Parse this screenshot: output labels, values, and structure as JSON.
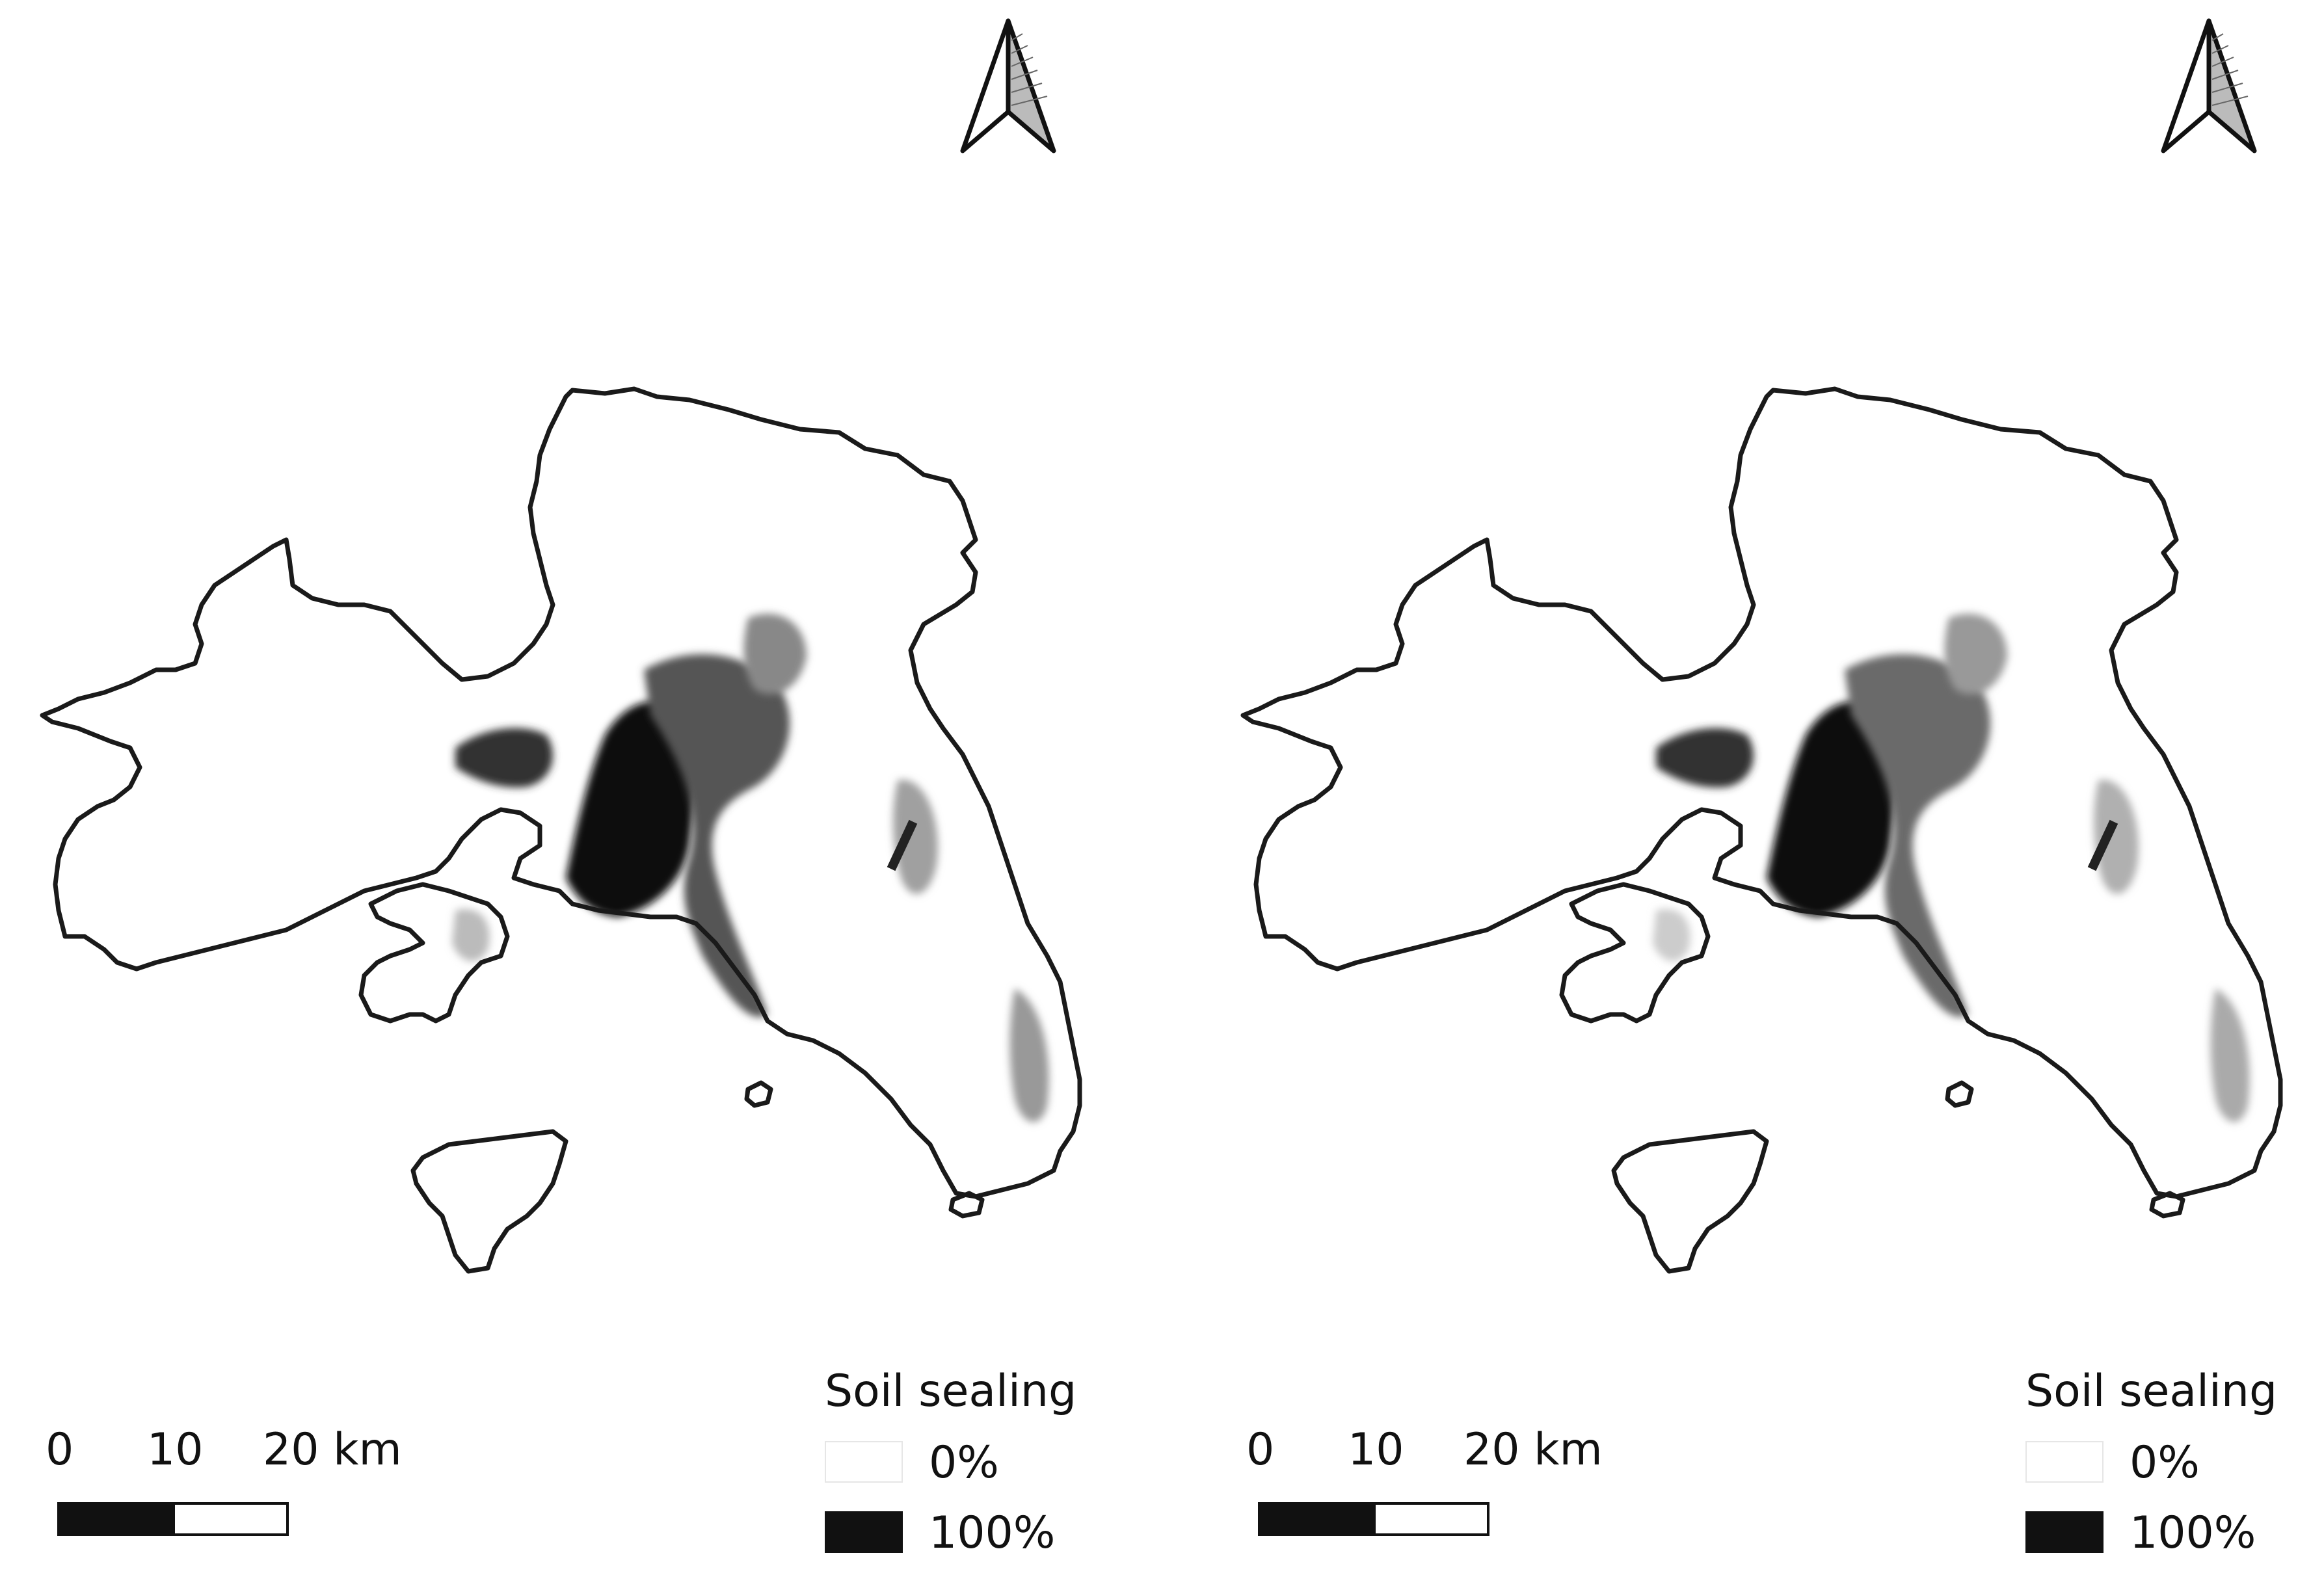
{
  "maps": [
    {
      "id": "left",
      "legend": {
        "title": "Soil sealing",
        "items": [
          {
            "label": "0%",
            "color": "#ffffff"
          },
          {
            "label": "100%",
            "color": "#111111"
          }
        ]
      },
      "scalebar": {
        "labels": [
          "0",
          "10",
          "20 km"
        ]
      },
      "north_arrow": {
        "icon": "north-arrow-icon"
      }
    },
    {
      "id": "right",
      "legend": {
        "title": "Soil sealing",
        "items": [
          {
            "label": "0%",
            "color": "#ffffff"
          },
          {
            "label": "100%",
            "color": "#111111"
          }
        ]
      },
      "scalebar": {
        "labels": [
          "0",
          "10",
          "20 km"
        ]
      },
      "north_arrow": {
        "icon": "north-arrow-icon"
      }
    }
  ],
  "colors": {
    "boundary": "#1a1a1a",
    "land": "#ffffff",
    "sealed_high": "#111111",
    "sealed_mid": "#555555",
    "sealed_low": "#a0a0a0"
  }
}
